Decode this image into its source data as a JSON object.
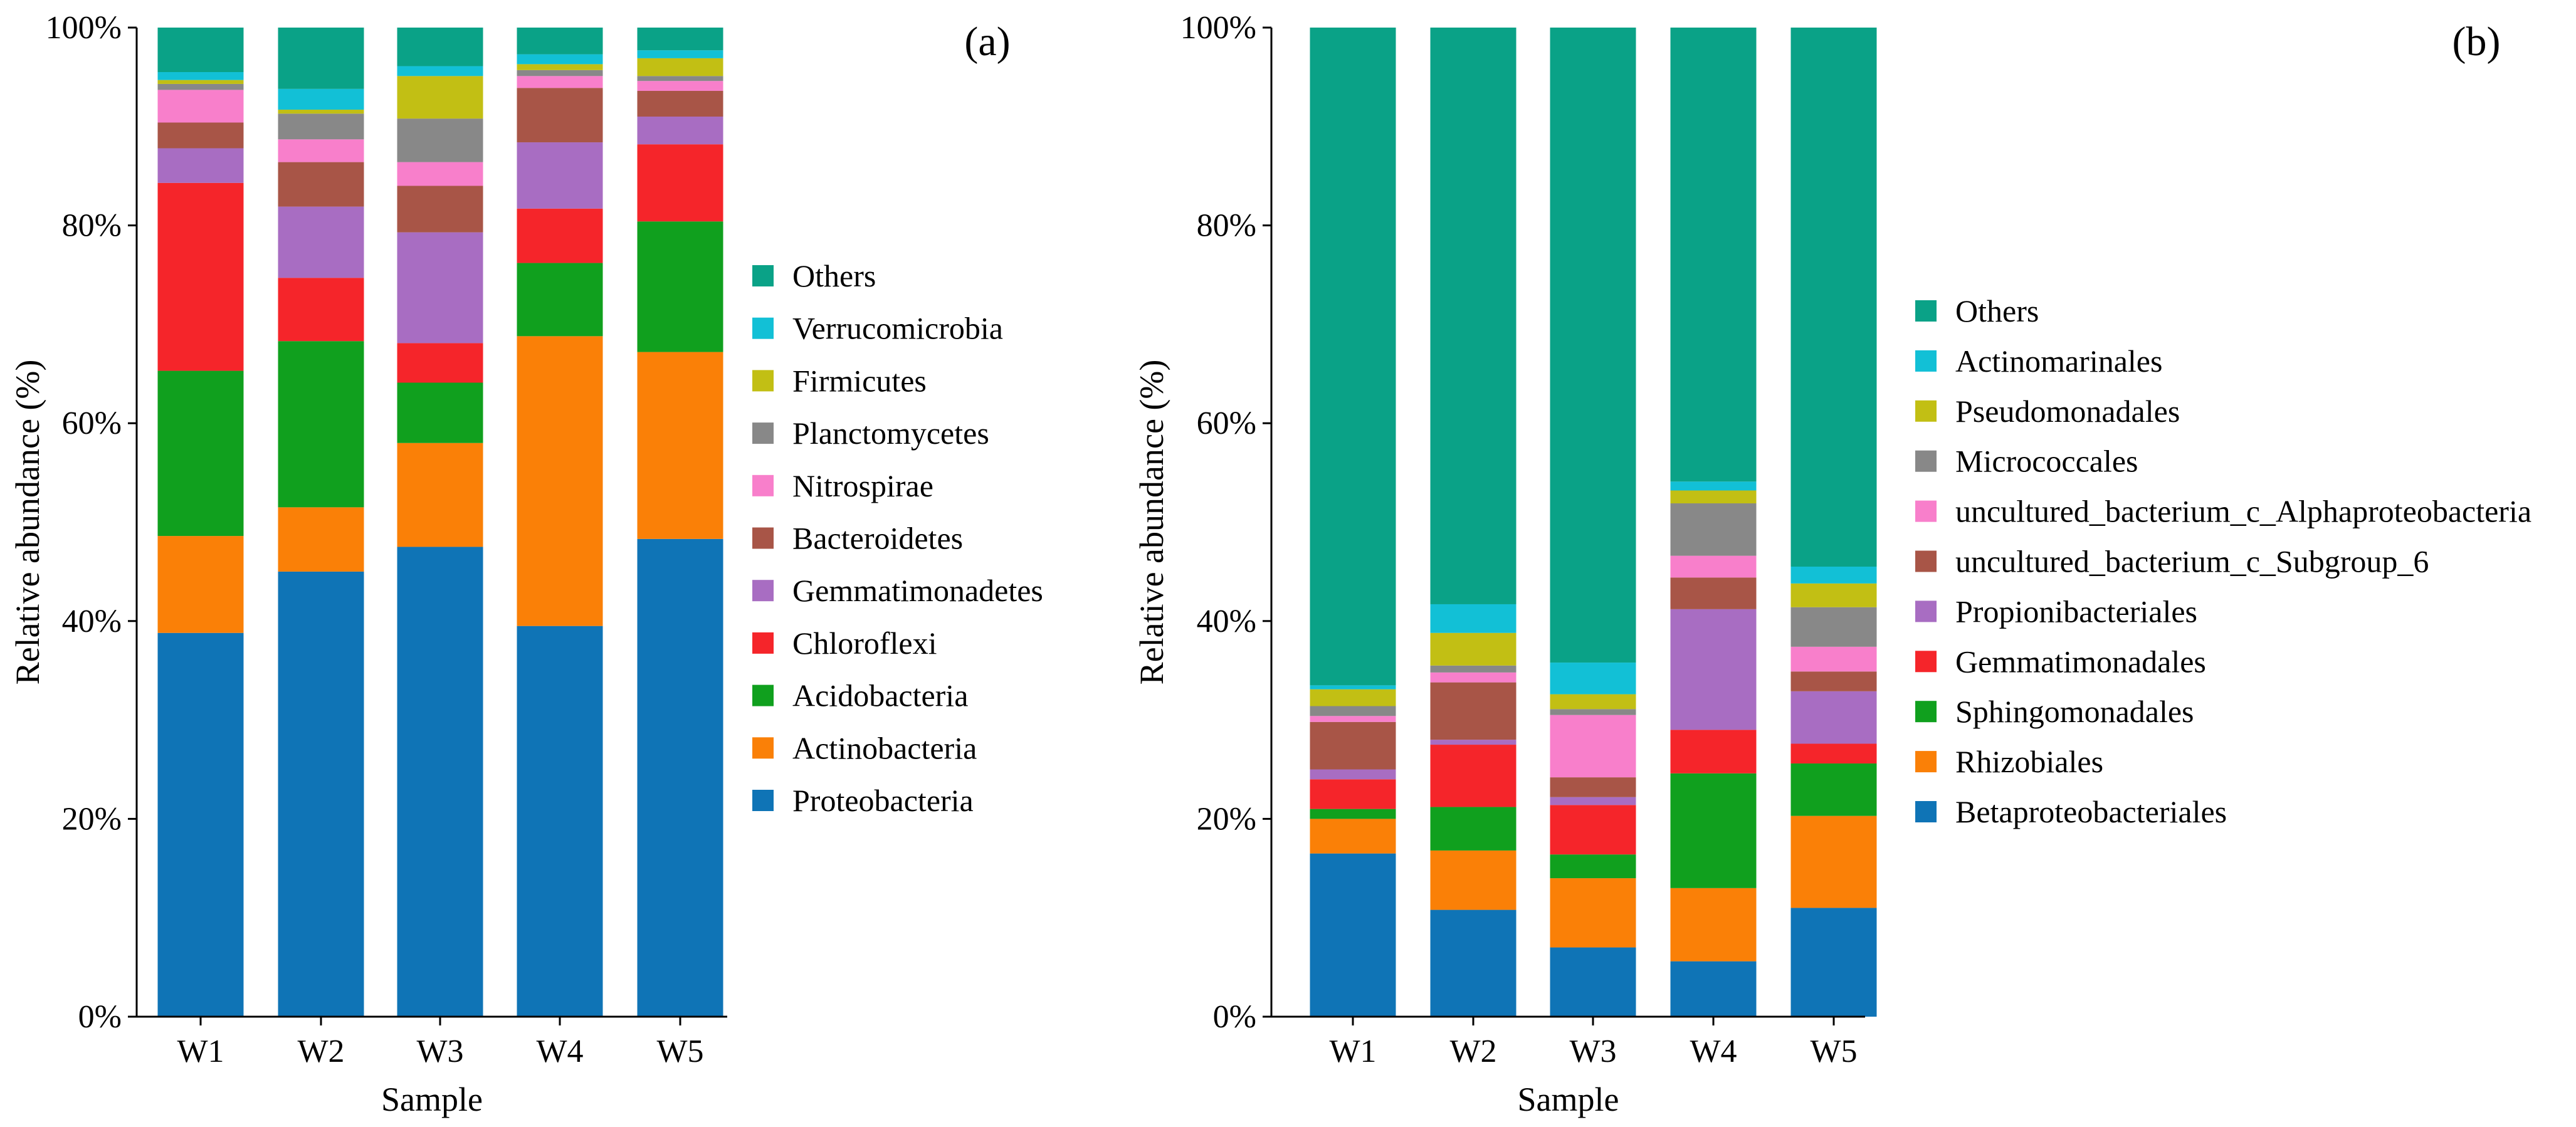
{
  "colors": {
    "Others": "#0aa287",
    "Verrucomicrobia": "#12c0d6",
    "Firmicutes": "#c2bf14",
    "Planctomycetes": "#888888",
    "Nitrospirae": "#f87fcb",
    "Bacteroidetes": "#a85547",
    "Gemmatimonadetes": "#a86dc2",
    "Chloroflexi": "#f5252a",
    "Acidobacteria": "#10a01e",
    "Actinobacteria": "#fa8007",
    "Proteobacteria": "#0f74b6",
    "Actinomarinales": "#12c0d6",
    "Pseudomonadales": "#c2bf14",
    "Micrococcales": "#888888",
    "uncultured_bacterium_c_Alphaproteobacteria": "#f87fcb",
    "uncultured_bacterium_c_Subgroup_6": "#a85547",
    "Propionibacteriales": "#a86dc2",
    "Gemmatimonadales": "#f5252a",
    "Sphingomonadales": "#10a01e",
    "Rhizobiales": "#fa8007",
    "Betaproteobacteriales": "#0f74b6"
  },
  "chart_data": [
    {
      "type": "bar",
      "stacked": true,
      "panel_label": "(a)",
      "xlabel": "Sample",
      "ylabel": "Relative abundance (%)",
      "ylim": [
        0,
        100
      ],
      "y_ticks": [
        "0%",
        "20%",
        "40%",
        "60%",
        "80%",
        "100%"
      ],
      "categories": [
        "W1",
        "W2",
        "W3",
        "W4",
        "W5"
      ],
      "legend_placement": "right",
      "series": [
        {
          "name": "Proteobacteria",
          "values": [
            38.8,
            45.0,
            47.5,
            39.5,
            48.3
          ]
        },
        {
          "name": "Actinobacteria",
          "values": [
            9.8,
            6.5,
            10.5,
            29.3,
            18.9
          ]
        },
        {
          "name": "Acidobacteria",
          "values": [
            16.7,
            16.8,
            6.1,
            7.4,
            13.2
          ]
        },
        {
          "name": "Chloroflexi",
          "values": [
            19.0,
            6.4,
            4.0,
            5.5,
            7.8
          ]
        },
        {
          "name": "Gemmatimonadetes",
          "values": [
            3.5,
            7.2,
            11.2,
            6.7,
            2.8
          ]
        },
        {
          "name": "Bacteroidetes",
          "values": [
            2.6,
            4.5,
            4.7,
            5.5,
            2.6
          ]
        },
        {
          "name": "Nitrospirae",
          "values": [
            3.3,
            2.3,
            2.4,
            1.2,
            1.0
          ]
        },
        {
          "name": "Planctomycetes",
          "values": [
            0.6,
            2.6,
            4.4,
            0.6,
            0.5
          ]
        },
        {
          "name": "Firmicutes",
          "values": [
            0.4,
            0.4,
            4.3,
            0.6,
            1.8
          ]
        },
        {
          "name": "Verrucomicrobia",
          "values": [
            0.8,
            2.1,
            1.0,
            1.0,
            0.8
          ]
        },
        {
          "name": "Others",
          "values": [
            4.5,
            6.2,
            3.9,
            2.7,
            2.3
          ]
        }
      ]
    },
    {
      "type": "bar",
      "stacked": true,
      "panel_label": "(b)",
      "xlabel": "Sample",
      "ylabel": "Relative abundance (%)",
      "ylim": [
        0,
        100
      ],
      "y_ticks": [
        "0%",
        "20%",
        "40%",
        "60%",
        "80%",
        "100%"
      ],
      "categories": [
        "W1",
        "W2",
        "W3",
        "W4",
        "W5"
      ],
      "legend_placement": "right",
      "series": [
        {
          "name": "Betaproteobacteriales",
          "values": [
            16.5,
            10.8,
            7.0,
            5.6,
            11.0
          ]
        },
        {
          "name": "Rhizobiales",
          "values": [
            3.5,
            6.0,
            7.0,
            7.4,
            9.3
          ]
        },
        {
          "name": "Sphingomonadales",
          "values": [
            1.0,
            4.4,
            2.4,
            11.6,
            5.3
          ]
        },
        {
          "name": "Gemmatimonadales",
          "values": [
            3.0,
            6.3,
            5.0,
            4.4,
            2.0
          ]
        },
        {
          "name": "Propionibacteriales",
          "values": [
            1.0,
            0.5,
            0.8,
            12.2,
            5.3
          ]
        },
        {
          "name": "uncultured_bacterium_c_Subgroup_6",
          "values": [
            4.8,
            5.8,
            2.0,
            3.2,
            2.0
          ]
        },
        {
          "name": "uncultured_bacterium_c_Alphaproteobacteria",
          "values": [
            0.6,
            1.0,
            6.3,
            2.2,
            2.5
          ]
        },
        {
          "name": "Micrococcales",
          "values": [
            1.0,
            0.7,
            0.6,
            5.3,
            4.0
          ]
        },
        {
          "name": "Pseudomonadales",
          "values": [
            1.7,
            3.3,
            1.5,
            1.3,
            2.4
          ]
        },
        {
          "name": "Actinomarinales",
          "values": [
            0.4,
            2.9,
            3.2,
            0.9,
            1.7
          ]
        },
        {
          "name": "Others",
          "values": [
            66.5,
            58.3,
            64.2,
            45.9,
            54.5
          ]
        }
      ]
    }
  ]
}
